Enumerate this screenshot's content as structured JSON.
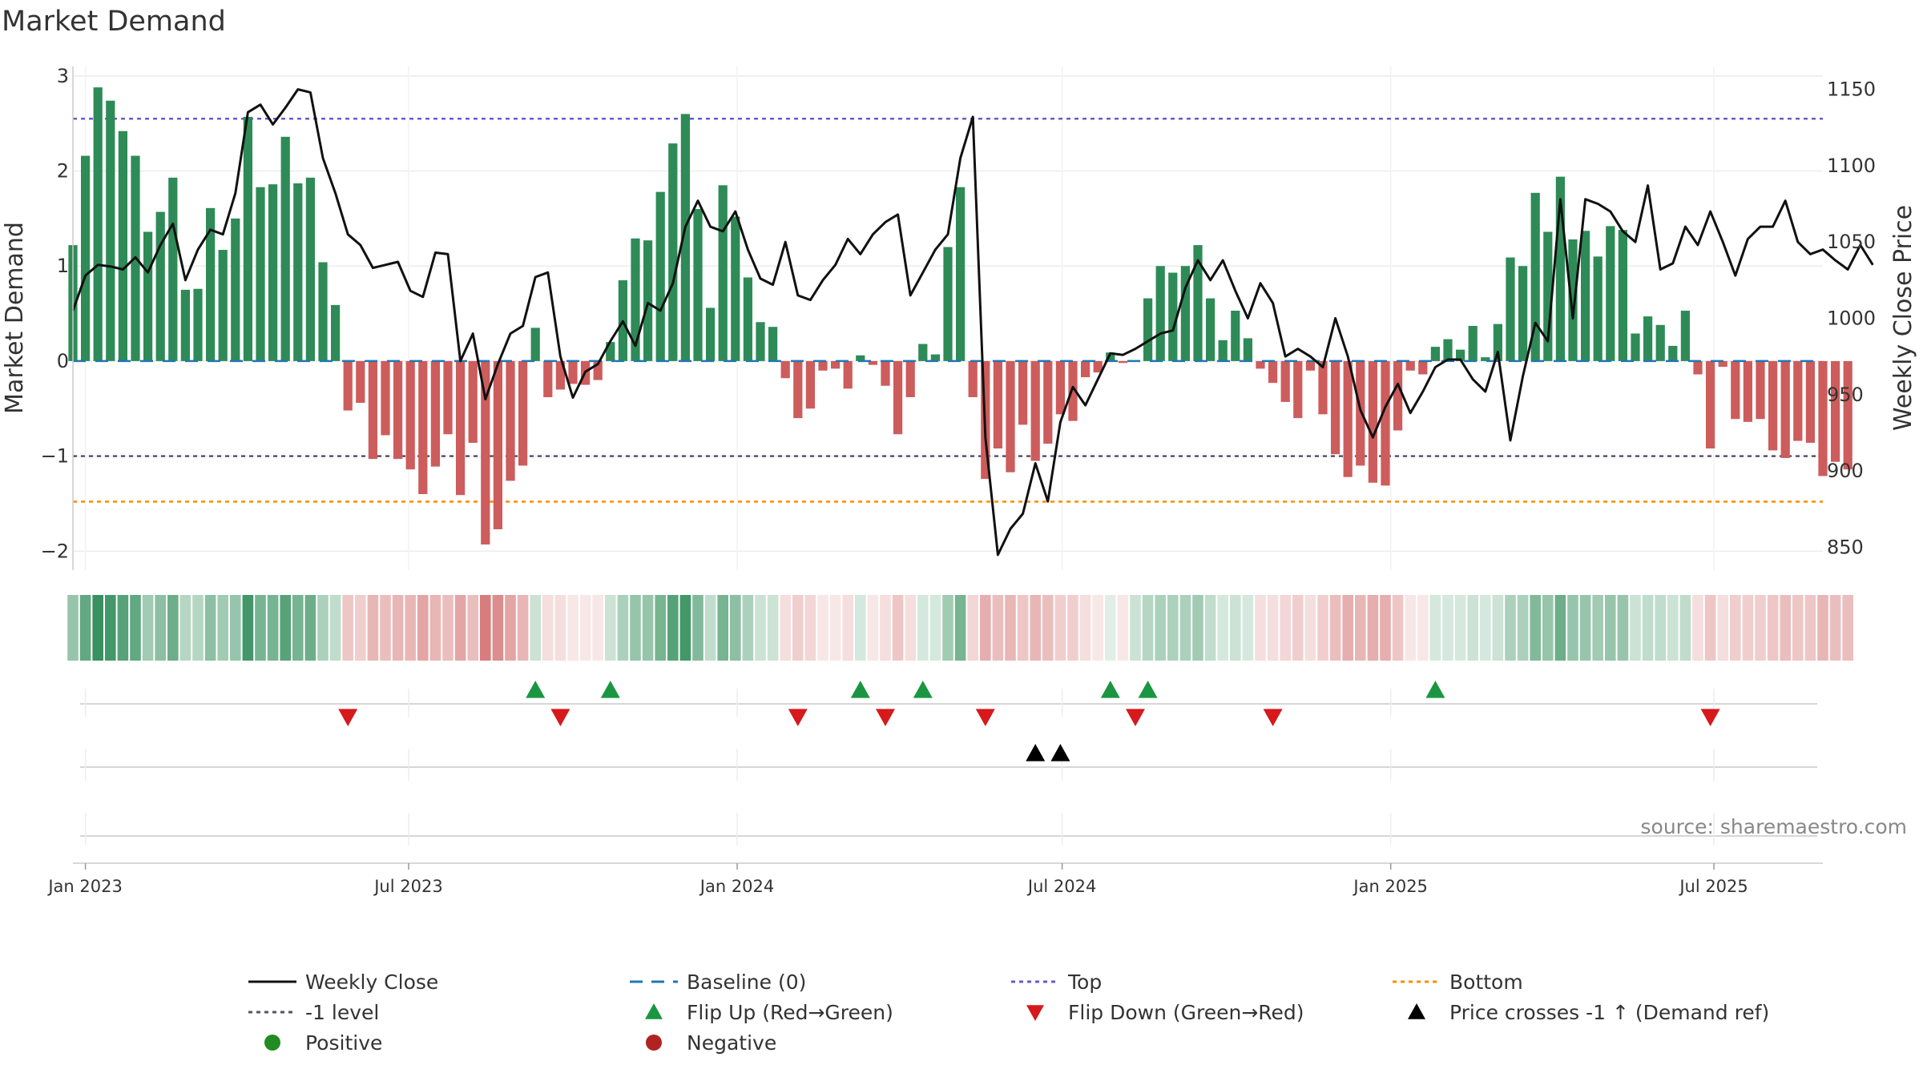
{
  "chart_data": {
    "type": "bar",
    "title": "Market Demand",
    "ylabel": "Market Demand",
    "y2label": "Weekly Close Price",
    "ylim": [
      -2.2,
      3.1
    ],
    "y2lim": [
      835,
      1165
    ],
    "yticks": [
      3,
      2,
      1,
      0,
      -1,
      -2
    ],
    "ytick_labels": [
      "3",
      "2",
      "1",
      "0",
      "−1",
      "−2"
    ],
    "y2ticks": [
      1150,
      1100,
      1050,
      1000,
      950,
      900,
      850
    ],
    "y2tick_labels": [
      "1150",
      "1100",
      "1050",
      "1000",
      "950",
      "900",
      "850"
    ],
    "date_range": [
      "2022-12-25",
      "2025-08-31"
    ],
    "x_ticks": [
      {
        "date": "2023-01-01",
        "label": "Jan 2023"
      },
      {
        "date": "2023-07-01",
        "label": "Jul 2023"
      },
      {
        "date": "2024-01-01",
        "label": "Jan 2024"
      },
      {
        "date": "2024-07-01",
        "label": "Jul 2024"
      },
      {
        "date": "2025-01-01",
        "label": "Jan 2025"
      },
      {
        "date": "2025-07-01",
        "label": "Jul 2025"
      }
    ],
    "reference_lines": {
      "baseline": 0,
      "top": 2.55,
      "level_minus_1": -1,
      "bottom": -1.48
    },
    "start_week": "2022-12-25",
    "demand": [
      1.22,
      2.16,
      2.88,
      2.74,
      2.42,
      2.16,
      1.36,
      1.57,
      1.93,
      0.75,
      0.76,
      1.61,
      1.17,
      1.5,
      2.57,
      1.83,
      1.86,
      2.36,
      1.87,
      1.93,
      1.04,
      0.59,
      -0.52,
      -0.44,
      -1.03,
      -0.78,
      -1.03,
      -1.14,
      -1.4,
      -1.11,
      -0.77,
      -1.41,
      -0.86,
      -1.93,
      -1.77,
      -1.26,
      -1.1,
      0.35,
      -0.38,
      -0.3,
      -0.24,
      -0.25,
      -0.2,
      0.2,
      0.85,
      1.29,
      1.27,
      1.78,
      2.29,
      2.6,
      1.6,
      0.56,
      1.85,
      1.52,
      0.88,
      0.41,
      0.36,
      -0.18,
      -0.6,
      -0.5,
      -0.1,
      -0.08,
      -0.29,
      0.06,
      -0.04,
      -0.26,
      -0.77,
      -0.38,
      0.18,
      0.07,
      1.2,
      1.83,
      -0.38,
      -1.24,
      -0.92,
      -1.17,
      -0.67,
      -1.05,
      -0.87,
      -0.56,
      -0.63,
      -0.17,
      -0.12,
      0.09,
      -0.02,
      0.01,
      0.66,
      1.0,
      0.93,
      1.0,
      1.22,
      0.66,
      0.22,
      0.53,
      0.24,
      -0.08,
      -0.23,
      -0.43,
      -0.6,
      -0.1,
      -0.56,
      -0.98,
      -1.22,
      -1.1,
      -1.28,
      -1.31,
      -0.73,
      -0.1,
      -0.14,
      0.15,
      0.23,
      0.12,
      0.37,
      0.04,
      0.39,
      1.09,
      1.0,
      1.77,
      1.36,
      1.94,
      1.28,
      1.37,
      1.1,
      1.42,
      1.38,
      0.29,
      0.47,
      0.38,
      0.16,
      0.53,
      -0.14,
      -0.92,
      -0.06,
      -0.61,
      -0.64,
      -0.61,
      -0.94,
      -1.02,
      -0.84,
      -0.86,
      -1.21,
      -1.06,
      -1.14
    ],
    "weekly_close": [
      1005,
      1028,
      1035,
      1034,
      1032,
      1040,
      1030,
      1048,
      1062,
      1025,
      1045,
      1058,
      1055,
      1082,
      1135,
      1140,
      1127,
      1138,
      1150,
      1148,
      1105,
      1082,
      1055,
      1048,
      1033,
      1035,
      1037,
      1018,
      1014,
      1043,
      1042,
      972,
      990,
      947,
      970,
      990,
      995,
      1027,
      1030,
      975,
      948,
      965,
      970,
      985,
      998,
      982,
      1010,
      1005,
      1023,
      1060,
      1077,
      1060,
      1057,
      1070,
      1045,
      1026,
      1022,
      1050,
      1015,
      1012,
      1025,
      1035,
      1052,
      1042,
      1055,
      1063,
      1068,
      1015,
      1030,
      1045,
      1055,
      1105,
      1132,
      922,
      845,
      862,
      872,
      905,
      880,
      932,
      955,
      943,
      960,
      977,
      976,
      980,
      985,
      990,
      992,
      1020,
      1038,
      1025,
      1038,
      1018,
      1000,
      1023,
      1010,
      975,
      980,
      975,
      968,
      1000,
      975,
      940,
      922,
      942,
      957,
      938,
      952,
      968,
      973,
      973,
      960,
      952,
      978,
      920,
      962,
      997,
      985,
      1078,
      1000,
      1078,
      1075,
      1070,
      1057,
      1050,
      1087,
      1032,
      1036,
      1060,
      1048,
      1070,
      1050,
      1028,
      1052,
      1060,
      1060,
      1077,
      1050,
      1042,
      1045,
      1038,
      1032,
      1048,
      1035
    ],
    "intensity": [
      0.5,
      0.75,
      0.95,
      0.9,
      0.8,
      0.75,
      0.45,
      0.55,
      0.7,
      0.35,
      0.35,
      0.55,
      0.45,
      0.5,
      0.9,
      0.65,
      0.65,
      0.8,
      0.65,
      0.7,
      0.4,
      0.3,
      0.35,
      0.3,
      0.45,
      0.4,
      0.45,
      0.45,
      0.55,
      0.45,
      0.4,
      0.55,
      0.4,
      0.8,
      0.7,
      0.55,
      0.45,
      0.25,
      0.2,
      0.2,
      0.15,
      0.15,
      0.15,
      0.25,
      0.4,
      0.5,
      0.5,
      0.65,
      0.8,
      0.9,
      0.6,
      0.3,
      0.65,
      0.55,
      0.4,
      0.25,
      0.25,
      0.2,
      0.3,
      0.25,
      0.15,
      0.15,
      0.2,
      0.2,
      0.15,
      0.2,
      0.35,
      0.2,
      0.2,
      0.2,
      0.45,
      0.65,
      0.25,
      0.5,
      0.4,
      0.45,
      0.35,
      0.45,
      0.4,
      0.3,
      0.3,
      0.2,
      0.15,
      0.15,
      0.1,
      0.25,
      0.35,
      0.4,
      0.4,
      0.4,
      0.45,
      0.3,
      0.2,
      0.25,
      0.2,
      0.2,
      0.2,
      0.25,
      0.3,
      0.2,
      0.3,
      0.4,
      0.5,
      0.45,
      0.5,
      0.5,
      0.35,
      0.15,
      0.15,
      0.2,
      0.2,
      0.2,
      0.25,
      0.2,
      0.25,
      0.4,
      0.4,
      0.6,
      0.5,
      0.7,
      0.5,
      0.5,
      0.45,
      0.5,
      0.5,
      0.25,
      0.3,
      0.3,
      0.25,
      0.3,
      0.2,
      0.35,
      0.2,
      0.3,
      0.3,
      0.3,
      0.35,
      0.4,
      0.35,
      0.35,
      0.45,
      0.4,
      0.4
    ],
    "flip_up_weeks": [
      37,
      43,
      63,
      68,
      83,
      86,
      109
    ],
    "flip_down_weeks": [
      22,
      39,
      58,
      65,
      73,
      85,
      96,
      131
    ],
    "price_cross_weeks": [
      77,
      79
    ],
    "colors": {
      "positive": "#2e8b57",
      "negative": "#cd5c5c",
      "close": "#111111",
      "baseline": "#1f77b4",
      "top": "#6a5acd",
      "minus1": "#555566",
      "bottom": "#ff8c00",
      "flip_up": "#1a9641",
      "flip_down": "#d7191c",
      "cross": "#000000",
      "positive_dot": "#228b22",
      "negative_dot": "#b22222"
    },
    "legend": [
      {
        "label": "Weekly Close",
        "kind": "line",
        "color": "#111111"
      },
      {
        "label": "Baseline (0)",
        "kind": "dashed",
        "color": "#1f77b4"
      },
      {
        "label": "Top",
        "kind": "dotted",
        "color": "#6a5acd"
      },
      {
        "label": "Bottom",
        "kind": "dotted",
        "color": "#ff8c00"
      },
      {
        "label": "-1 level",
        "kind": "dotted",
        "color": "#555566"
      },
      {
        "label": "Flip Up (Red→Green)",
        "kind": "tri-up",
        "color": "#1a9641"
      },
      {
        "label": "Flip Down (Green→Red)",
        "kind": "tri-down",
        "color": "#d7191c"
      },
      {
        "label": "Price crosses -1 ↑ (Demand ref)",
        "kind": "tri-up",
        "color": "#000000"
      },
      {
        "label": "Positive",
        "kind": "dot",
        "color": "#228b22"
      },
      {
        "label": "Negative",
        "kind": "dot",
        "color": "#b22222"
      }
    ],
    "source": "source: sharemaestro.com"
  }
}
